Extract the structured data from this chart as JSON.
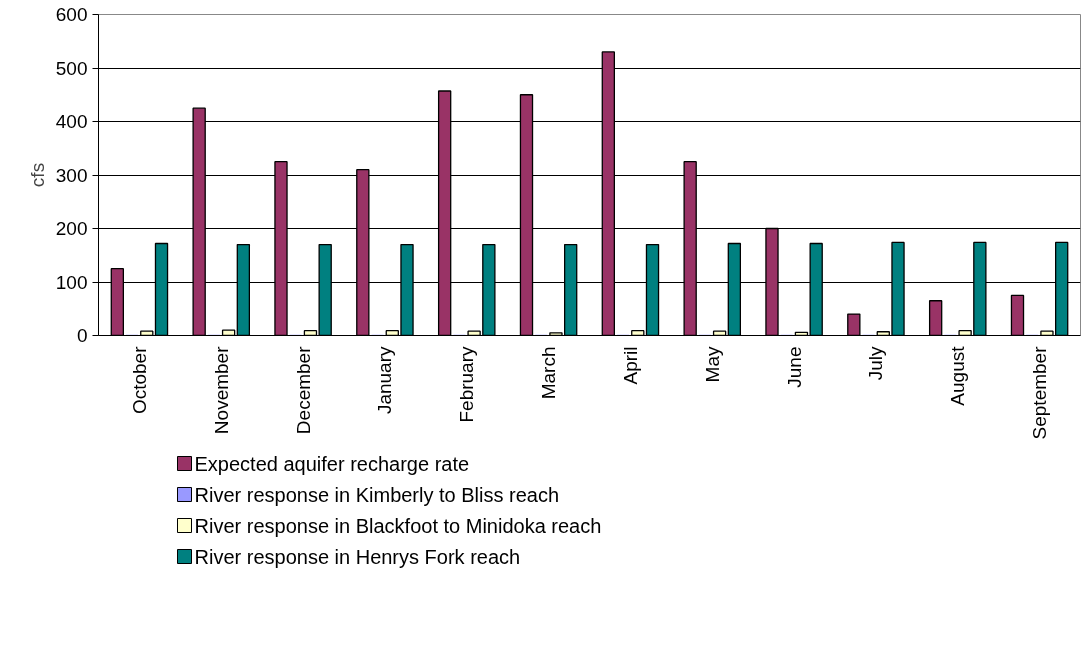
{
  "chart_data": {
    "type": "bar",
    "ylabel": "cfs",
    "categories": [
      "October",
      "November",
      "December",
      "January",
      "February",
      "March",
      "April",
      "May",
      "June",
      "July",
      "August",
      "September"
    ],
    "series": [
      {
        "name": "Expected aquifer recharge rate",
        "color": "#993366",
        "values": [
          125,
          425,
          325,
          310,
          457,
          450,
          530,
          325,
          200,
          40,
          65,
          75
        ]
      },
      {
        "name": "River response in Kimberly to Bliss reach",
        "color": "#9999ff",
        "values": [
          0,
          0,
          0,
          0,
          0,
          0,
          0,
          0,
          0,
          0,
          0,
          0
        ]
      },
      {
        "name": "River response in Blackfoot to Minidoka reach",
        "color": "#ffffcc",
        "values": [
          8,
          10,
          9,
          9,
          8,
          5,
          9,
          8,
          6,
          7,
          9,
          8
        ]
      },
      {
        "name": "River response in Henrys Fork reach",
        "color": "#008080",
        "values": [
          172,
          170,
          170,
          170,
          170,
          170,
          170,
          172,
          172,
          174,
          174,
          174
        ]
      }
    ],
    "ylim": [
      0,
      600
    ],
    "yticks": [
      0,
      100,
      200,
      300,
      400,
      500,
      600
    ],
    "grid": "y",
    "legend": "bottom"
  }
}
